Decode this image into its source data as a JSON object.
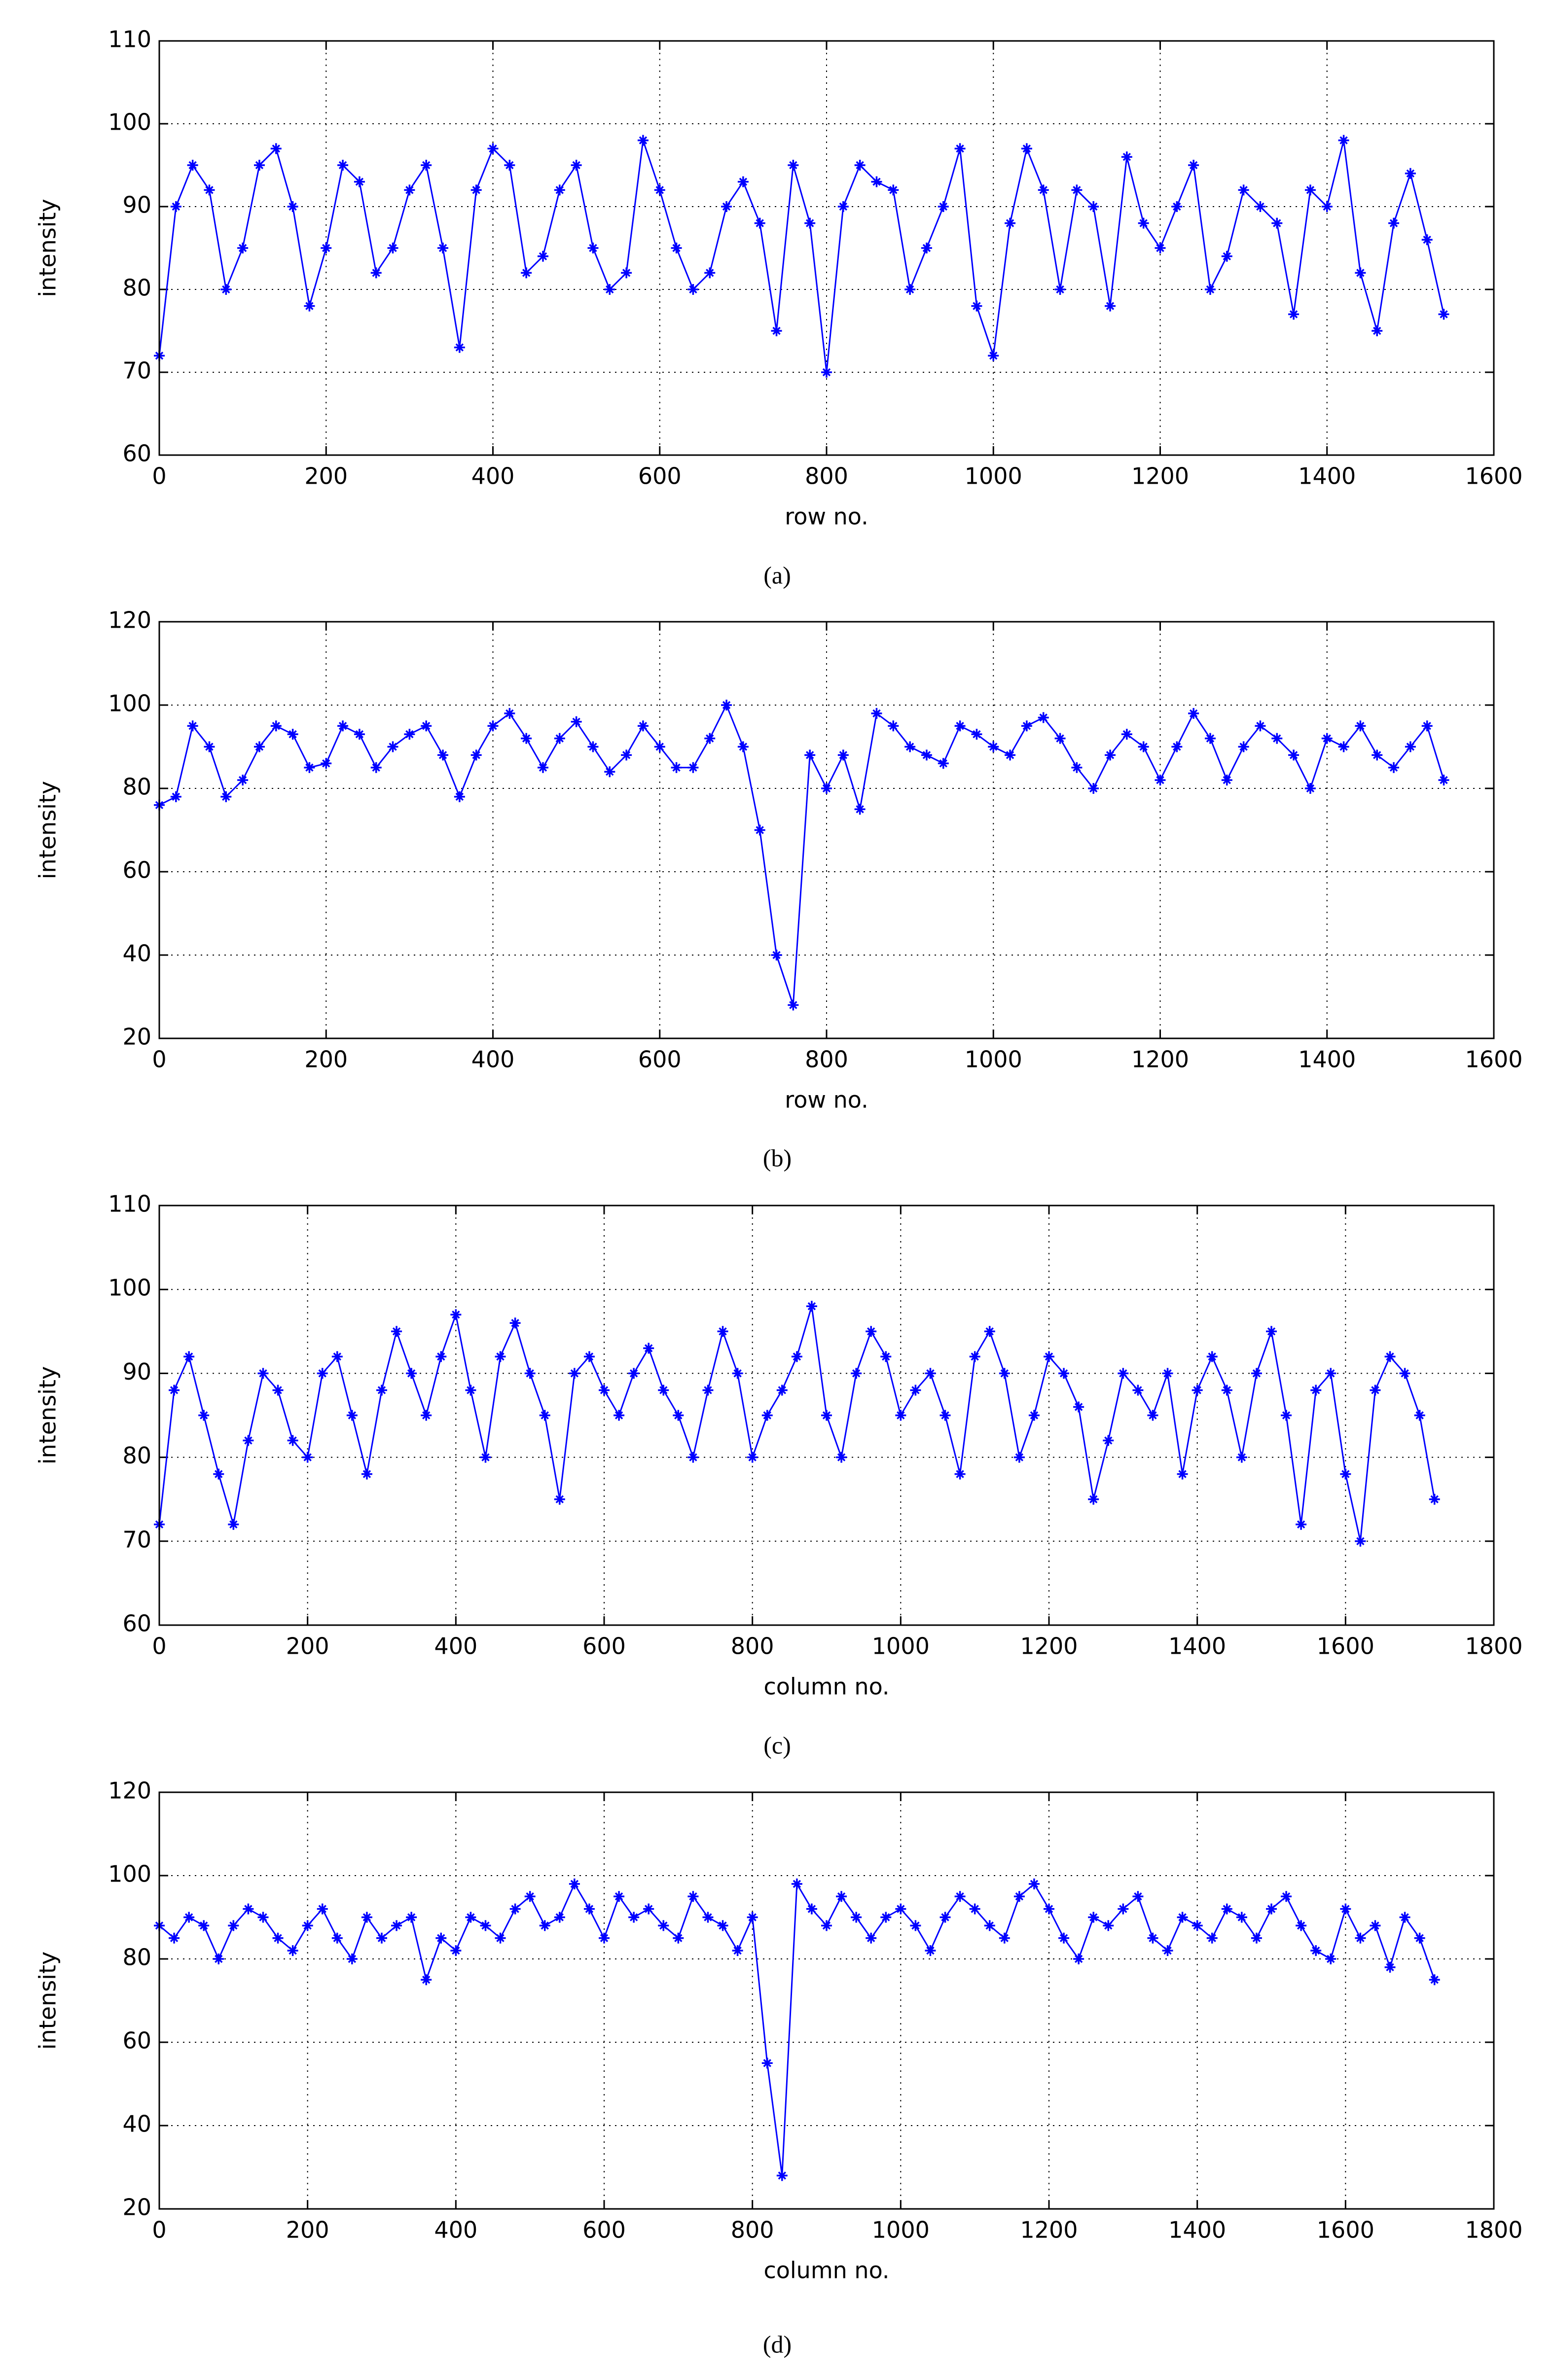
{
  "chart_data": [
    {
      "type": "line",
      "xlabel": "row no.",
      "ylabel": "intensity",
      "caption": "(a)",
      "color": "#0000ff",
      "grid": true,
      "xlim": [
        0,
        1600
      ],
      "xticks": [
        0,
        200,
        400,
        600,
        800,
        1000,
        1200,
        1400,
        1600
      ],
      "ylim": [
        60,
        110
      ],
      "yticks": [
        60,
        70,
        80,
        90,
        100,
        110
      ],
      "x": [
        0,
        20,
        40,
        60,
        80,
        100,
        120,
        140,
        160,
        180,
        200,
        220,
        240,
        260,
        280,
        300,
        320,
        340,
        360,
        380,
        400,
        420,
        440,
        460,
        480,
        500,
        520,
        540,
        560,
        580,
        600,
        620,
        640,
        660,
        680,
        700,
        720,
        740,
        760,
        780,
        800,
        820,
        840,
        860,
        880,
        900,
        920,
        940,
        960,
        980,
        1000,
        1020,
        1040,
        1060,
        1080,
        1100,
        1120,
        1140,
        1160,
        1180,
        1200,
        1220,
        1240,
        1260,
        1280,
        1300,
        1320,
        1340,
        1360,
        1380,
        1400,
        1420,
        1440,
        1460,
        1480,
        1500,
        1520,
        1540
      ],
      "values": [
        72,
        90,
        95,
        92,
        80,
        85,
        95,
        97,
        90,
        78,
        85,
        95,
        93,
        82,
        85,
        92,
        95,
        85,
        73,
        92,
        97,
        95,
        82,
        84,
        92,
        95,
        85,
        80,
        82,
        98,
        92,
        85,
        80,
        82,
        90,
        93,
        88,
        75,
        95,
        88,
        70,
        90,
        95,
        93,
        92,
        80,
        85,
        90,
        97,
        78,
        72,
        88,
        97,
        92,
        80,
        92,
        90,
        78,
        96,
        88,
        85,
        90,
        95,
        80,
        84,
        92,
        90,
        88,
        77,
        92,
        90,
        98,
        82,
        75,
        88,
        94,
        86,
        77
      ]
    },
    {
      "type": "line",
      "xlabel": "row no.",
      "ylabel": "intensity",
      "caption": "(b)",
      "color": "#0000ff",
      "grid": true,
      "xlim": [
        0,
        1600
      ],
      "xticks": [
        0,
        200,
        400,
        600,
        800,
        1000,
        1200,
        1400,
        1600
      ],
      "ylim": [
        20,
        120
      ],
      "yticks": [
        20,
        40,
        60,
        80,
        100,
        120
      ],
      "x": [
        0,
        20,
        40,
        60,
        80,
        100,
        120,
        140,
        160,
        180,
        200,
        220,
        240,
        260,
        280,
        300,
        320,
        340,
        360,
        380,
        400,
        420,
        440,
        460,
        480,
        500,
        520,
        540,
        560,
        580,
        600,
        620,
        640,
        660,
        680,
        700,
        720,
        740,
        760,
        780,
        800,
        820,
        840,
        860,
        880,
        900,
        920,
        940,
        960,
        980,
        1000,
        1020,
        1040,
        1060,
        1080,
        1100,
        1120,
        1140,
        1160,
        1180,
        1200,
        1220,
        1240,
        1260,
        1280,
        1300,
        1320,
        1340,
        1360,
        1380,
        1400,
        1420,
        1440,
        1460,
        1480,
        1500,
        1520,
        1540
      ],
      "values": [
        76,
        78,
        95,
        90,
        78,
        82,
        90,
        95,
        93,
        85,
        86,
        95,
        93,
        85,
        90,
        93,
        95,
        88,
        78,
        88,
        95,
        98,
        92,
        85,
        92,
        96,
        90,
        84,
        88,
        95,
        90,
        85,
        85,
        92,
        100,
        90,
        70,
        40,
        28,
        88,
        80,
        88,
        75,
        98,
        95,
        90,
        88,
        86,
        95,
        93,
        90,
        88,
        95,
        97,
        92,
        85,
        80,
        88,
        93,
        90,
        82,
        90,
        98,
        92,
        82,
        90,
        95,
        92,
        88,
        80,
        92,
        90,
        95,
        88,
        85,
        90,
        95,
        82
      ]
    },
    {
      "type": "line",
      "xlabel": "column no.",
      "ylabel": "intensity",
      "caption": "(c)",
      "color": "#0000ff",
      "grid": true,
      "xlim": [
        0,
        1800
      ],
      "xticks": [
        0,
        200,
        400,
        600,
        800,
        1000,
        1200,
        1400,
        1600,
        1800
      ],
      "ylim": [
        60,
        110
      ],
      "yticks": [
        60,
        70,
        80,
        90,
        100,
        110
      ],
      "x": [
        0,
        20,
        40,
        60,
        80,
        100,
        120,
        140,
        160,
        180,
        200,
        220,
        240,
        260,
        280,
        300,
        320,
        340,
        360,
        380,
        400,
        420,
        440,
        460,
        480,
        500,
        520,
        540,
        560,
        580,
        600,
        620,
        640,
        660,
        680,
        700,
        720,
        740,
        760,
        780,
        800,
        820,
        840,
        860,
        880,
        900,
        920,
        940,
        960,
        980,
        1000,
        1020,
        1040,
        1060,
        1080,
        1100,
        1120,
        1140,
        1160,
        1180,
        1200,
        1220,
        1240,
        1260,
        1280,
        1300,
        1320,
        1340,
        1360,
        1380,
        1400,
        1420,
        1440,
        1460,
        1480,
        1500,
        1520,
        1540,
        1560,
        1580,
        1600,
        1620,
        1640,
        1660,
        1680,
        1700,
        1720
      ],
      "values": [
        72,
        88,
        92,
        85,
        78,
        72,
        82,
        90,
        88,
        82,
        80,
        90,
        92,
        85,
        78,
        88,
        95,
        90,
        85,
        92,
        97,
        88,
        80,
        92,
        96,
        90,
        85,
        75,
        90,
        92,
        88,
        85,
        90,
        93,
        88,
        85,
        80,
        88,
        95,
        90,
        80,
        85,
        88,
        92,
        98,
        85,
        80,
        90,
        95,
        92,
        85,
        88,
        90,
        85,
        78,
        92,
        95,
        90,
        80,
        85,
        92,
        90,
        86,
        75,
        82,
        90,
        88,
        85,
        90,
        78,
        88,
        92,
        88,
        80,
        90,
        95,
        85,
        72,
        88,
        90,
        78,
        70,
        88,
        92,
        90,
        85,
        75
      ]
    },
    {
      "type": "line",
      "xlabel": "column no.",
      "ylabel": "intensity",
      "caption": "(d)",
      "color": "#0000ff",
      "grid": true,
      "xlim": [
        0,
        1800
      ],
      "xticks": [
        0,
        200,
        400,
        600,
        800,
        1000,
        1200,
        1400,
        1600,
        1800
      ],
      "ylim": [
        20,
        120
      ],
      "yticks": [
        20,
        40,
        60,
        80,
        100,
        120
      ],
      "x": [
        0,
        20,
        40,
        60,
        80,
        100,
        120,
        140,
        160,
        180,
        200,
        220,
        240,
        260,
        280,
        300,
        320,
        340,
        360,
        380,
        400,
        420,
        440,
        460,
        480,
        500,
        520,
        540,
        560,
        580,
        600,
        620,
        640,
        660,
        680,
        700,
        720,
        740,
        760,
        780,
        800,
        820,
        840,
        860,
        880,
        900,
        920,
        940,
        960,
        980,
        1000,
        1020,
        1040,
        1060,
        1080,
        1100,
        1120,
        1140,
        1160,
        1180,
        1200,
        1220,
        1240,
        1260,
        1280,
        1300,
        1320,
        1340,
        1360,
        1380,
        1400,
        1420,
        1440,
        1460,
        1480,
        1500,
        1520,
        1540,
        1560,
        1580,
        1600,
        1620,
        1640,
        1660,
        1680,
        1700,
        1720
      ],
      "values": [
        88,
        85,
        90,
        88,
        80,
        88,
        92,
        90,
        85,
        82,
        88,
        92,
        85,
        80,
        90,
        85,
        88,
        90,
        75,
        85,
        82,
        90,
        88,
        85,
        92,
        95,
        88,
        90,
        98,
        92,
        85,
        95,
        90,
        92,
        88,
        85,
        95,
        90,
        88,
        82,
        90,
        55,
        28,
        98,
        92,
        88,
        95,
        90,
        85,
        90,
        92,
        88,
        82,
        90,
        95,
        92,
        88,
        85,
        95,
        98,
        92,
        85,
        80,
        90,
        88,
        92,
        95,
        85,
        82,
        90,
        88,
        85,
        92,
        90,
        85,
        92,
        95,
        88,
        82,
        80,
        92,
        85,
        88,
        78,
        90,
        85,
        75
      ]
    }
  ]
}
